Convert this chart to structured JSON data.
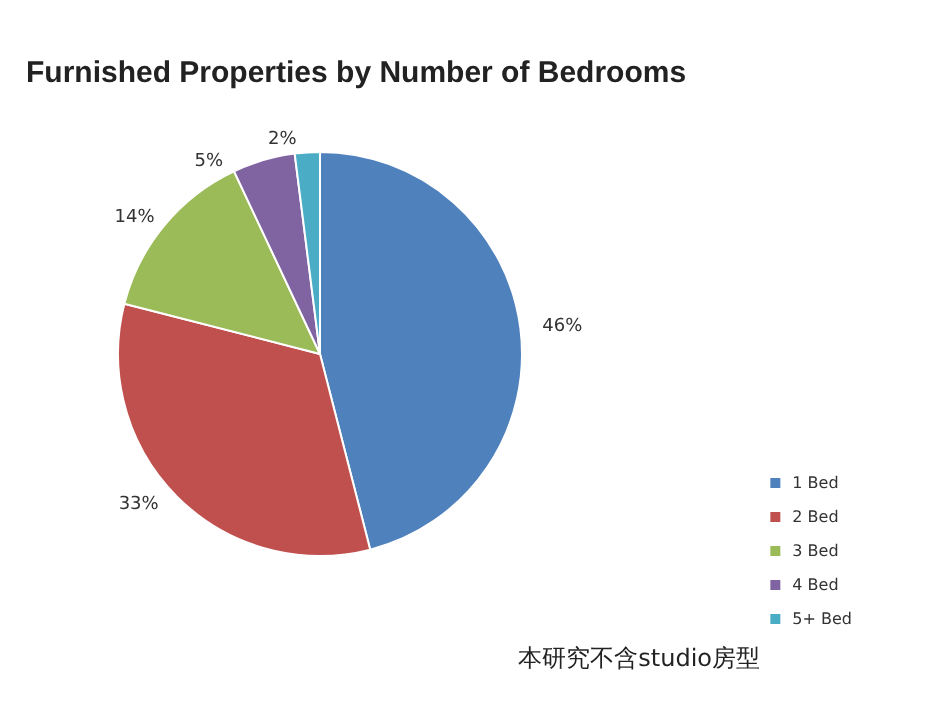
{
  "chart_data": {
    "type": "pie",
    "title": "Furnished Properties by Number of Bedrooms",
    "categories": [
      "1 Bed",
      "2 Bed",
      "3 Bed",
      "4 Bed",
      "5+ Bed"
    ],
    "values": [
      46,
      33,
      14,
      5,
      2
    ],
    "value_labels": [
      "46%",
      "33%",
      "14%",
      "5%",
      "2%"
    ],
    "colors": [
      "#4f81bd",
      "#c0504d",
      "#9bbb59",
      "#8064a2",
      "#4bacc6"
    ],
    "legend": "right",
    "annotations": [
      "本研究不含studio房型"
    ]
  }
}
